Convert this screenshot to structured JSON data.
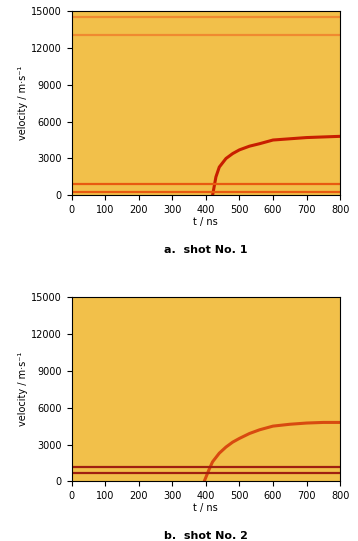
{
  "chart_data": [
    {
      "type": "line",
      "title": "a.  shot No. 1",
      "x_label": "t / ns",
      "y_label": "velocity / m·s⁻¹",
      "xlim": [
        0,
        800
      ],
      "ylim": [
        0,
        15000
      ],
      "xticks": [
        0,
        100,
        200,
        300,
        400,
        500,
        600,
        700,
        800
      ],
      "yticks": [
        0,
        3000,
        6000,
        9000,
        12000,
        15000
      ],
      "grid": false,
      "series": [
        {
          "color": "#c81e00",
          "x": [
            420,
            430,
            440,
            460,
            480,
            500,
            530,
            560,
            600,
            650,
            700,
            750,
            800
          ],
          "values": [
            0,
            1500,
            2300,
            3000,
            3400,
            3700,
            4000,
            4200,
            4500,
            4600,
            4700,
            4750,
            4800
          ]
        },
        {
          "color": "#e85a10",
          "x": [
            0,
            800
          ],
          "values": [
            300,
            300
          ]
        },
        {
          "color": "#e85a10",
          "x": [
            0,
            800
          ],
          "values": [
            900,
            900
          ]
        },
        {
          "color": "#f08a30",
          "x": [
            0,
            800
          ],
          "values": [
            13000,
            13000
          ]
        },
        {
          "color": "#f08a30",
          "x": [
            0,
            800
          ],
          "values": [
            14500,
            14500
          ]
        }
      ]
    },
    {
      "type": "line",
      "title": "b.  shot No. 2",
      "x_label": "t / ns",
      "y_label": "velocity / m·s⁻¹",
      "xlim": [
        0,
        800
      ],
      "ylim": [
        0,
        15000
      ],
      "xticks": [
        0,
        100,
        200,
        300,
        400,
        500,
        600,
        700,
        800
      ],
      "yticks": [
        0,
        3000,
        6000,
        9000,
        12000,
        15000
      ],
      "grid": false,
      "series": [
        {
          "color": "#d84a10",
          "x": [
            395,
            410,
            420,
            440,
            460,
            480,
            500,
            530,
            560,
            600,
            650,
            700,
            750,
            800
          ],
          "values": [
            0,
            1000,
            1600,
            2300,
            2800,
            3200,
            3500,
            3900,
            4200,
            4500,
            4650,
            4750,
            4800,
            4800
          ]
        },
        {
          "color": "#a02010",
          "x": [
            0,
            800
          ],
          "values": [
            700,
            700
          ]
        },
        {
          "color": "#a02010",
          "x": [
            0,
            800
          ],
          "values": [
            1200,
            1200
          ]
        }
      ]
    }
  ]
}
